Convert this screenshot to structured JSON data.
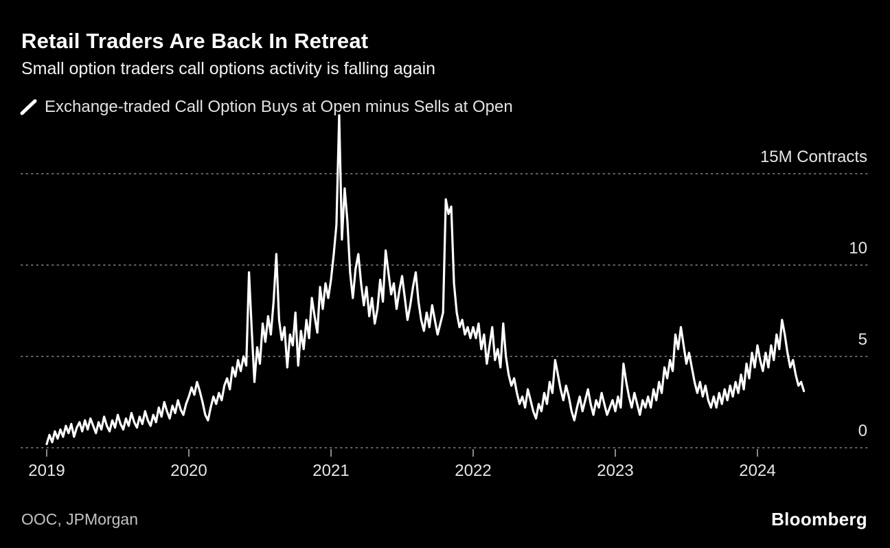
{
  "header": {
    "title": "Retail Traders Are Back In Retreat",
    "subtitle": "Small option traders call options activity is falling again"
  },
  "legend": {
    "label": "Exchange-traded Call Option Buys at Open minus Sells at Open",
    "series_color": "#ffffff"
  },
  "footer": {
    "source": "OOC, JPMorgan",
    "brand": "Bloomberg"
  },
  "chart_data": {
    "type": "line",
    "title": "Retail Traders Are Back In Retreat",
    "series_name": "Exchange-traded Call Option Buys at Open minus Sells at Open",
    "units": "M Contracts",
    "line_color": "#ffffff",
    "grid_color": "#6a6a6a",
    "grid_style": "dotted horizontal",
    "legend_position": "top-left",
    "x_start": 2019.0,
    "x_step_years": 0.01923,
    "x_ticks": [
      2019,
      2020,
      2021,
      2022,
      2023,
      2024
    ],
    "x_tick_labels": [
      "2019",
      "2020",
      "2021",
      "2022",
      "2023",
      "2024"
    ],
    "xlim": [
      2018.9,
      2024.8
    ],
    "y_ticks": [
      0,
      5,
      10,
      15
    ],
    "y_tick_labels": [
      "0",
      "5",
      "10",
      "15M Contracts"
    ],
    "ylim": [
      -0.5,
      18.5
    ],
    "values": [
      0.2,
      0.7,
      0.3,
      0.9,
      0.5,
      1.0,
      0.6,
      1.2,
      0.8,
      1.3,
      0.6,
      1.1,
      1.4,
      0.9,
      1.5,
      1.0,
      1.6,
      1.2,
      0.8,
      1.4,
      1.0,
      1.7,
      1.2,
      0.9,
      1.5,
      1.1,
      1.8,
      1.3,
      1.0,
      1.6,
      1.2,
      1.9,
      1.4,
      1.1,
      1.7,
      1.3,
      2.0,
      1.5,
      1.2,
      1.8,
      1.4,
      2.2,
      1.7,
      2.5,
      2.0,
      1.6,
      2.3,
      1.9,
      2.6,
      2.1,
      1.8,
      2.4,
      2.8,
      3.3,
      2.9,
      3.6,
      3.1,
      2.5,
      1.8,
      1.5,
      2.2,
      2.8,
      2.4,
      3.0,
      2.6,
      3.4,
      3.8,
      3.2,
      4.4,
      3.9,
      4.8,
      4.2,
      5.0,
      4.5,
      9.6,
      6.5,
      3.6,
      5.5,
      4.6,
      6.8,
      5.8,
      7.2,
      6.2,
      8.0,
      10.6,
      7.0,
      5.9,
      6.6,
      4.4,
      6.2,
      5.6,
      7.4,
      4.5,
      6.4,
      5.4,
      7.0,
      6.0,
      8.2,
      7.2,
      6.3,
      8.8,
      7.6,
      9.0,
      8.2,
      9.2,
      10.6,
      12.2,
      18.2,
      11.4,
      14.2,
      12.4,
      9.6,
      8.2,
      9.8,
      10.6,
      9.0,
      7.8,
      8.8,
      7.2,
      8.2,
      6.8,
      7.6,
      9.2,
      8.0,
      10.8,
      9.6,
      8.4,
      9.0,
      7.6,
      8.6,
      9.4,
      8.2,
      7.0,
      7.8,
      8.8,
      9.6,
      8.0,
      7.0,
      6.4,
      7.4,
      6.6,
      7.8,
      7.0,
      6.2,
      6.8,
      7.4,
      13.6,
      12.8,
      13.2,
      9.0,
      7.4,
      6.6,
      7.0,
      6.2,
      6.6,
      6.0,
      6.6,
      6.0,
      6.8,
      5.4,
      6.2,
      4.6,
      5.6,
      6.6,
      4.8,
      5.4,
      4.4,
      6.8,
      5.0,
      4.0,
      3.4,
      3.8,
      3.0,
      2.4,
      2.8,
      2.2,
      3.2,
      2.6,
      2.0,
      1.6,
      2.4,
      2.0,
      3.0,
      2.4,
      3.6,
      3.0,
      4.8,
      4.0,
      3.2,
      2.6,
      3.4,
      2.8,
      2.0,
      1.5,
      2.2,
      2.8,
      2.0,
      2.6,
      3.2,
      2.4,
      1.8,
      2.6,
      2.2,
      3.0,
      2.4,
      1.8,
      2.2,
      2.6,
      2.0,
      2.8,
      2.2,
      4.6,
      3.6,
      2.8,
      2.2,
      3.0,
      2.4,
      1.8,
      2.6,
      2.2,
      2.8,
      2.2,
      3.2,
      2.6,
      3.6,
      3.0,
      4.4,
      3.8,
      4.8,
      4.2,
      6.2,
      5.4,
      6.6,
      5.6,
      4.6,
      5.2,
      4.4,
      3.6,
      3.0,
      3.6,
      2.8,
      3.4,
      2.6,
      2.2,
      2.8,
      2.2,
      3.0,
      2.4,
      3.2,
      2.6,
      3.4,
      2.8,
      3.6,
      3.0,
      4.0,
      3.2,
      4.6,
      3.8,
      5.2,
      4.4,
      5.6,
      4.8,
      4.2,
      5.2,
      4.4,
      5.6,
      4.8,
      6.2,
      5.4,
      7.0,
      6.2,
      5.2,
      4.4,
      4.8,
      4.0,
      3.4,
      3.6,
      3.1
    ]
  }
}
